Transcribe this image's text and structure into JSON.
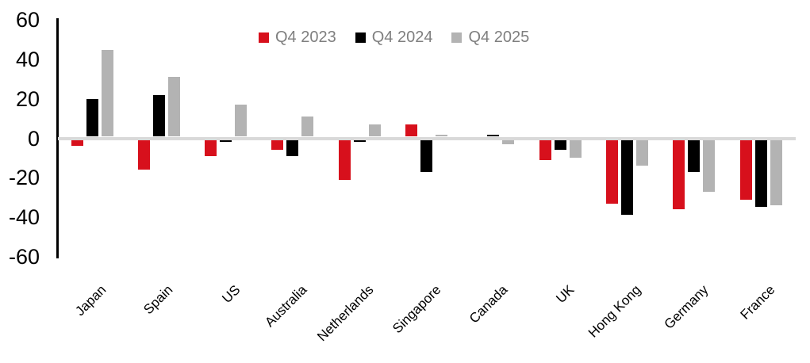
{
  "chart_data": {
    "type": "bar",
    "title": "",
    "xlabel": "",
    "ylabel": "",
    "categories": [
      "Japan",
      "Spain",
      "US",
      "Australia",
      "Netherlands",
      "Singapore",
      "Canada",
      "UK",
      "Hong Kong",
      "Germany",
      "France"
    ],
    "series": [
      {
        "name": "Q4 2023",
        "color": "#d7101c",
        "values": [
          -4,
          -16,
          -9,
          -6,
          -21,
          7,
          0,
          -11,
          -33,
          -36,
          -31
        ]
      },
      {
        "name": "Q4 2024",
        "color": "#000000",
        "values": [
          20,
          22,
          -2,
          -9,
          -2,
          -17,
          2,
          -6,
          -39,
          -17,
          -35
        ]
      },
      {
        "name": "Q4 2025",
        "color": "#b3b3b3",
        "values": [
          45,
          31,
          17,
          11,
          7,
          2,
          -3,
          -10,
          -14,
          -27,
          -34
        ]
      }
    ],
    "ylim": [
      -60,
      60
    ],
    "yticks": [
      60,
      40,
      20,
      0,
      -20,
      -40,
      -60
    ],
    "grid": false,
    "legend_position": "top-center",
    "zero_line_color": "#d9d9d9",
    "axis_line_color": "#000000",
    "tick_label_color": "#000000",
    "legend_text_color": "#7f7f7f",
    "background_color": "#ffffff"
  }
}
